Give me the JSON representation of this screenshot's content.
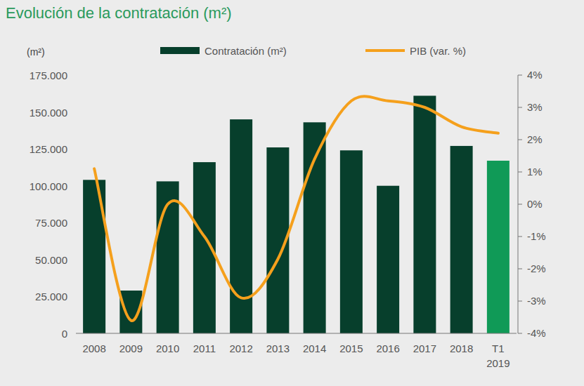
{
  "chart_data": {
    "type": "bar",
    "title": "Evolución de la contratación (m²)",
    "y_label": "(m²)",
    "categories": [
      "2008",
      "2009",
      "2010",
      "2011",
      "2012",
      "2013",
      "2014",
      "2015",
      "2016",
      "2017",
      "2018",
      "T1 2019"
    ],
    "series": [
      {
        "name": "Contratación (m²)",
        "type": "bar",
        "color": "#073f2c",
        "colors": [
          "#073f2c",
          "#073f2c",
          "#073f2c",
          "#073f2c",
          "#073f2c",
          "#073f2c",
          "#073f2c",
          "#073f2c",
          "#073f2c",
          "#073f2c",
          "#073f2c",
          "#109a57"
        ],
        "values": [
          104000,
          29000,
          103000,
          116000,
          145000,
          126000,
          143000,
          124000,
          100000,
          161000,
          127000,
          117000
        ]
      },
      {
        "name": "PIB (var. %)",
        "type": "line",
        "axis": "y2",
        "color": "#f5a01c",
        "line_style": "smooth",
        "values": [
          1.1,
          -3.6,
          0.0,
          -1.0,
          -2.9,
          -1.7,
          1.4,
          3.2,
          3.2,
          3.0,
          2.4,
          2.2
        ]
      }
    ],
    "ylim": [
      0,
      175000
    ],
    "yticks": [
      0,
      {
        "value": 25000,
        "label": "25.000"
      },
      {
        "value": 50000,
        "label": "50.000"
      },
      {
        "value": 75000,
        "label": "75.000"
      },
      {
        "value": 100000,
        "label": "100.000"
      },
      {
        "value": 125000,
        "label": "125.000"
      },
      {
        "value": 150000,
        "label": "150.000"
      },
      {
        "value": 175000,
        "label": "175.000"
      }
    ],
    "y2lim": [
      -4,
      4
    ],
    "y2ticks": [
      {
        "value": -4,
        "label": "-4%"
      },
      {
        "value": -3,
        "label": "-3%"
      },
      {
        "value": -2,
        "label": "-2%"
      },
      {
        "value": -1,
        "label": "-1%"
      },
      {
        "value": 0,
        "label": "0%"
      },
      {
        "value": 1,
        "label": "1%"
      },
      {
        "value": 2,
        "label": "2%"
      },
      {
        "value": 3,
        "label": "3%"
      },
      {
        "value": 4,
        "label": "4%"
      }
    ],
    "legend": "top",
    "grid": false
  }
}
